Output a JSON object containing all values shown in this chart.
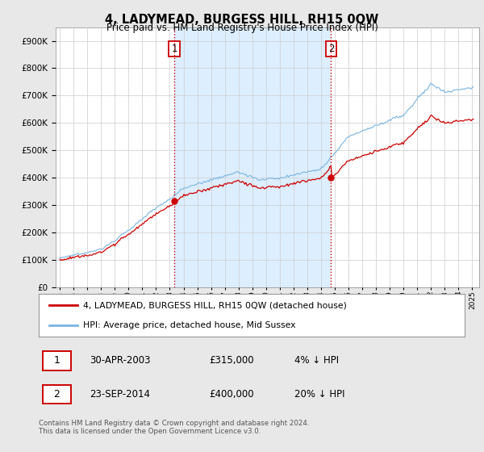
{
  "title": "4, LADYMEAD, BURGESS HILL, RH15 0QW",
  "subtitle": "Price paid vs. HM Land Registry's House Price Index (HPI)",
  "ylim": [
    0,
    950000
  ],
  "yticks": [
    0,
    100000,
    200000,
    300000,
    400000,
    500000,
    600000,
    700000,
    800000,
    900000
  ],
  "xlim_start": 1994.7,
  "xlim_end": 2025.5,
  "sale1_date": 2003.33,
  "sale1_price": 315000,
  "sale1_label": "1",
  "sale2_date": 2014.73,
  "sale2_price": 400000,
  "sale2_label": "2",
  "hpi_line_color": "#7ab4e0",
  "price_line_color": "#cc0000",
  "vline_color": "#cc0000",
  "vline_style": ":",
  "background_color": "#e8e8e8",
  "plot_bg_color": "#ffffff",
  "shade_color": "#ddeeff",
  "grid_color": "#cccccc",
  "legend_entry1": "4, LADYMEAD, BURGESS HILL, RH15 0QW (detached house)",
  "legend_entry2": "HPI: Average price, detached house, Mid Sussex",
  "table_row1_num": "1",
  "table_row1_date": "30-APR-2003",
  "table_row1_price": "£315,000",
  "table_row1_hpi": "4% ↓ HPI",
  "table_row2_num": "2",
  "table_row2_date": "23-SEP-2014",
  "table_row2_price": "£400,000",
  "table_row2_hpi": "20% ↓ HPI",
  "footnote": "Contains HM Land Registry data © Crown copyright and database right 2024.\nThis data is licensed under the Open Government Licence v3.0."
}
